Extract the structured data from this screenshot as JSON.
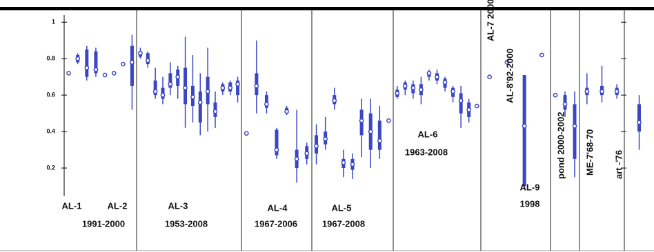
{
  "chart_data": {
    "type": "box",
    "color": "#3b46c4",
    "ylim": [
      0,
      1.05
    ],
    "yticks": [
      0.2,
      0.4,
      0.6,
      0.8,
      1
    ],
    "panels": [
      {
        "labels": [
          "AL-1",
          "AL-2",
          "1991-2000"
        ],
        "boxes": [
          [
            0.72,
            0.72,
            0.72,
            0.72,
            0.72
          ],
          [
            0.77,
            0.78,
            0.8,
            0.82,
            0.83
          ],
          [
            0.68,
            0.7,
            0.75,
            0.85,
            0.87
          ],
          [
            0.7,
            0.72,
            0.74,
            0.84,
            0.86
          ],
          [
            0.71,
            0.71,
            0.71,
            0.71,
            0.71
          ],
          [
            0.72,
            0.72,
            0.72,
            0.72,
            0.72
          ],
          [
            0.77,
            0.77,
            0.77,
            0.77,
            0.77
          ],
          [
            0.52,
            0.65,
            0.78,
            0.87,
            0.93
          ]
        ]
      },
      {
        "labels": [
          "AL-3",
          "1953-2008"
        ],
        "boxes": [
          [
            0.8,
            0.81,
            0.83,
            0.84,
            0.86
          ],
          [
            0.75,
            0.77,
            0.79,
            0.83,
            0.84
          ],
          [
            0.58,
            0.6,
            0.62,
            0.68,
            0.75
          ],
          [
            0.55,
            0.58,
            0.6,
            0.64,
            0.7
          ],
          [
            0.6,
            0.64,
            0.66,
            0.72,
            0.78
          ],
          [
            0.58,
            0.65,
            0.7,
            0.74,
            0.76
          ],
          [
            0.42,
            0.55,
            0.64,
            0.75,
            0.92
          ],
          [
            0.45,
            0.54,
            0.59,
            0.65,
            0.82
          ],
          [
            0.38,
            0.45,
            0.56,
            0.62,
            0.72
          ],
          [
            0.4,
            0.55,
            0.62,
            0.7,
            0.86
          ],
          [
            0.42,
            0.48,
            0.51,
            0.56,
            0.62
          ],
          [
            0.6,
            0.62,
            0.64,
            0.66,
            0.67
          ],
          [
            0.6,
            0.62,
            0.64,
            0.67,
            0.68
          ],
          [
            0.56,
            0.6,
            0.66,
            0.68,
            0.7
          ]
        ]
      },
      {
        "labels": [
          "AL-4",
          "1967-2006"
        ],
        "boxes": [
          [
            0.39,
            0.39,
            0.39,
            0.39,
            0.39
          ],
          [
            0.5,
            0.6,
            0.65,
            0.72,
            0.9
          ],
          [
            0.5,
            0.53,
            0.55,
            0.6,
            0.62
          ],
          [
            0.25,
            0.27,
            0.3,
            0.41,
            0.42
          ],
          [
            0.49,
            0.5,
            0.51,
            0.53,
            0.54
          ],
          [
            0.12,
            0.2,
            0.25,
            0.3,
            0.52
          ],
          [
            0.22,
            0.25,
            0.28,
            0.32,
            0.34
          ]
        ]
      },
      {
        "labels": [
          "AL-5",
          "1967-2008"
        ],
        "boxes": [
          [
            0.22,
            0.28,
            0.32,
            0.38,
            0.44
          ],
          [
            0.3,
            0.33,
            0.36,
            0.4,
            0.48
          ],
          [
            0.52,
            0.55,
            0.57,
            0.6,
            0.64
          ],
          [
            0.15,
            0.2,
            0.23,
            0.25,
            0.3
          ],
          [
            0.14,
            0.19,
            0.22,
            0.25,
            0.28
          ],
          [
            0.26,
            0.38,
            0.46,
            0.52,
            0.58
          ],
          [
            0.2,
            0.3,
            0.4,
            0.5,
            0.58
          ],
          [
            0.25,
            0.3,
            0.35,
            0.46,
            0.54
          ],
          [
            0.46,
            0.46,
            0.46,
            0.46,
            0.46
          ]
        ]
      },
      {
        "labels": [
          "AL-6",
          "1963-2008"
        ],
        "boxes": [
          [
            0.58,
            0.59,
            0.61,
            0.63,
            0.65
          ],
          [
            0.6,
            0.63,
            0.65,
            0.67,
            0.68
          ],
          [
            0.58,
            0.61,
            0.64,
            0.66,
            0.68
          ],
          [
            0.55,
            0.6,
            0.63,
            0.66,
            0.7
          ],
          [
            0.68,
            0.7,
            0.72,
            0.73,
            0.74
          ],
          [
            0.66,
            0.68,
            0.7,
            0.72,
            0.74
          ],
          [
            0.62,
            0.64,
            0.67,
            0.69,
            0.7
          ],
          [
            0.56,
            0.59,
            0.62,
            0.64,
            0.65
          ],
          [
            0.42,
            0.5,
            0.57,
            0.61,
            0.65
          ],
          [
            0.45,
            0.48,
            0.52,
            0.56,
            0.58
          ],
          [
            0.54,
            0.54,
            0.54,
            0.54,
            0.54
          ]
        ]
      },
      {
        "labels": [
          "AL-7 2000",
          "AL-8'92-2000",
          "AL-9",
          "1998"
        ],
        "boxes": [
          [
            0.7,
            0.7,
            0.7,
            0.7,
            0.7
          ],
          [
            0.78,
            0.78,
            0.78,
            0.78,
            0.78
          ],
          [
            0.1,
            0.1,
            0.43,
            0.71,
            0.71
          ],
          [
            0.82,
            0.82,
            0.82,
            0.82,
            0.82
          ]
        ]
      },
      {
        "labels": [
          "pond 2000-2002"
        ],
        "boxes": [
          [
            0.6,
            0.6,
            0.6,
            0.6,
            0.6
          ],
          [
            0.48,
            0.52,
            0.55,
            0.6,
            0.62
          ],
          [
            0.15,
            0.25,
            0.43,
            0.55,
            0.62
          ]
        ]
      },
      {
        "labels": [
          "ME-7'68-70"
        ],
        "boxes": [
          [
            0.55,
            0.6,
            0.62,
            0.64,
            0.72
          ],
          [
            0.56,
            0.6,
            0.62,
            0.65,
            0.76
          ],
          [
            0.58,
            0.6,
            0.62,
            0.64,
            0.66
          ]
        ]
      },
      {
        "labels": [
          "art -'76"
        ],
        "boxes": [
          [
            0.3,
            0.4,
            0.45,
            0.55,
            0.6
          ]
        ]
      }
    ]
  }
}
